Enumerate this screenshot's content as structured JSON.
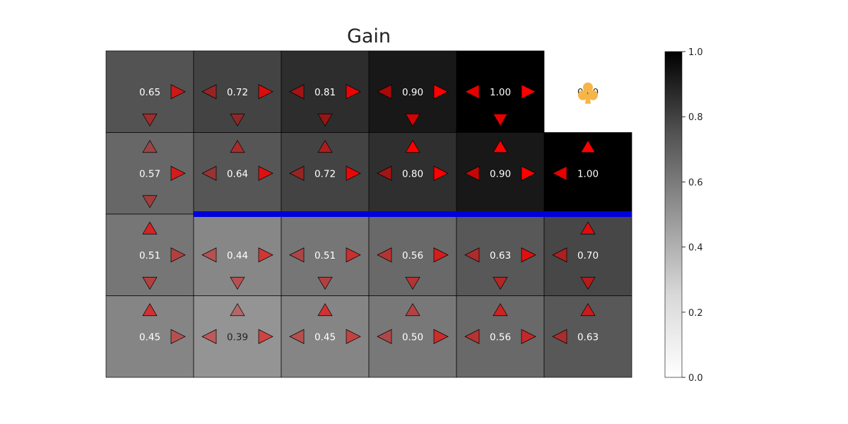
{
  "chart_data": {
    "type": "heatmap",
    "title": "Gain",
    "rows": 4,
    "cols": 6,
    "values": [
      [
        0.65,
        0.72,
        0.81,
        0.9,
        1.0,
        0.0
      ],
      [
        0.57,
        0.64,
        0.72,
        0.8,
        0.9,
        1.0
      ],
      [
        0.51,
        0.44,
        0.51,
        0.56,
        0.63,
        0.7
      ],
      [
        0.45,
        0.39,
        0.45,
        0.5,
        0.56,
        0.63
      ]
    ],
    "value_labels": [
      [
        "0.65",
        "0.72",
        "0.81",
        "0.90",
        "1.00",
        "0.00"
      ],
      [
        "0.57",
        "0.64",
        "0.72",
        "0.80",
        "0.90",
        "1.00"
      ],
      [
        "0.51",
        "0.44",
        "0.51",
        "0.56",
        "0.63",
        "0.70"
      ],
      [
        "0.45",
        "0.39",
        "0.45",
        "0.50",
        "0.56",
        "0.63"
      ]
    ],
    "blank_cells": [
      [
        0,
        5
      ]
    ],
    "goal_cell": [
      0,
      5
    ],
    "goal_icon": "club-suit-icon",
    "goal_color": "#f5b547",
    "wall": {
      "after_row": 1,
      "from_col": 1,
      "to_col": 5,
      "color": "#0000dd"
    },
    "arrow_color": "#ff0000",
    "arrows": [
      [
        {
          "L": null,
          "R": 0.72,
          "U": null,
          "D": 0.45
        },
        {
          "L": 0.45,
          "R": 0.81,
          "U": null,
          "D": 0.4
        },
        {
          "L": 0.55,
          "R": 0.9,
          "U": null,
          "D": 0.5
        },
        {
          "L": 0.62,
          "R": 1.0,
          "U": null,
          "D": 0.8
        },
        {
          "L": 0.9,
          "R": 1.0,
          "U": null,
          "D": 0.9
        },
        null
      ],
      [
        {
          "L": null,
          "R": 0.72,
          "U": 0.35,
          "D": 0.4
        },
        {
          "L": 0.4,
          "R": 0.8,
          "U": 0.5,
          "D": null
        },
        {
          "L": 0.45,
          "R": 0.9,
          "U": 0.55,
          "D": null
        },
        {
          "L": 0.55,
          "R": 1.0,
          "U": 1.0,
          "D": null
        },
        {
          "L": 0.75,
          "R": 1.0,
          "U": 1.0,
          "D": null
        },
        {
          "L": 0.9,
          "R": null,
          "U": 1.0,
          "D": null
        }
      ],
      [
        {
          "L": null,
          "R": 0.45,
          "U": 0.7,
          "D": 0.45
        },
        {
          "L": 0.4,
          "R": 0.6,
          "U": null,
          "D": 0.4
        },
        {
          "L": 0.4,
          "R": 0.6,
          "U": null,
          "D": 0.45
        },
        {
          "L": 0.5,
          "R": 0.72,
          "U": null,
          "D": 0.5
        },
        {
          "L": 0.5,
          "R": 0.8,
          "U": null,
          "D": 0.55
        },
        {
          "L": 0.55,
          "R": null,
          "U": 0.8,
          "D": 0.6
        }
      ],
      [
        {
          "L": null,
          "R": 0.4,
          "U": 0.62,
          "D": null
        },
        {
          "L": 0.4,
          "R": 0.55,
          "U": 0.3,
          "D": null
        },
        {
          "L": 0.4,
          "R": 0.5,
          "U": 0.62,
          "D": null
        },
        {
          "L": 0.4,
          "R": 0.62,
          "U": 0.45,
          "D": null
        },
        {
          "L": 0.5,
          "R": 0.62,
          "U": 0.68,
          "D": null
        },
        {
          "L": 0.5,
          "R": null,
          "U": 0.68,
          "D": null
        }
      ]
    ],
    "colorbar": {
      "range": [
        0,
        1
      ],
      "ticks": [
        0.0,
        0.2,
        0.4,
        0.6,
        0.8,
        1.0
      ],
      "tick_labels": [
        "0.0",
        "0.2",
        "0.4",
        "0.6",
        "0.8",
        "1.0"
      ],
      "colormap": "Greys"
    }
  }
}
